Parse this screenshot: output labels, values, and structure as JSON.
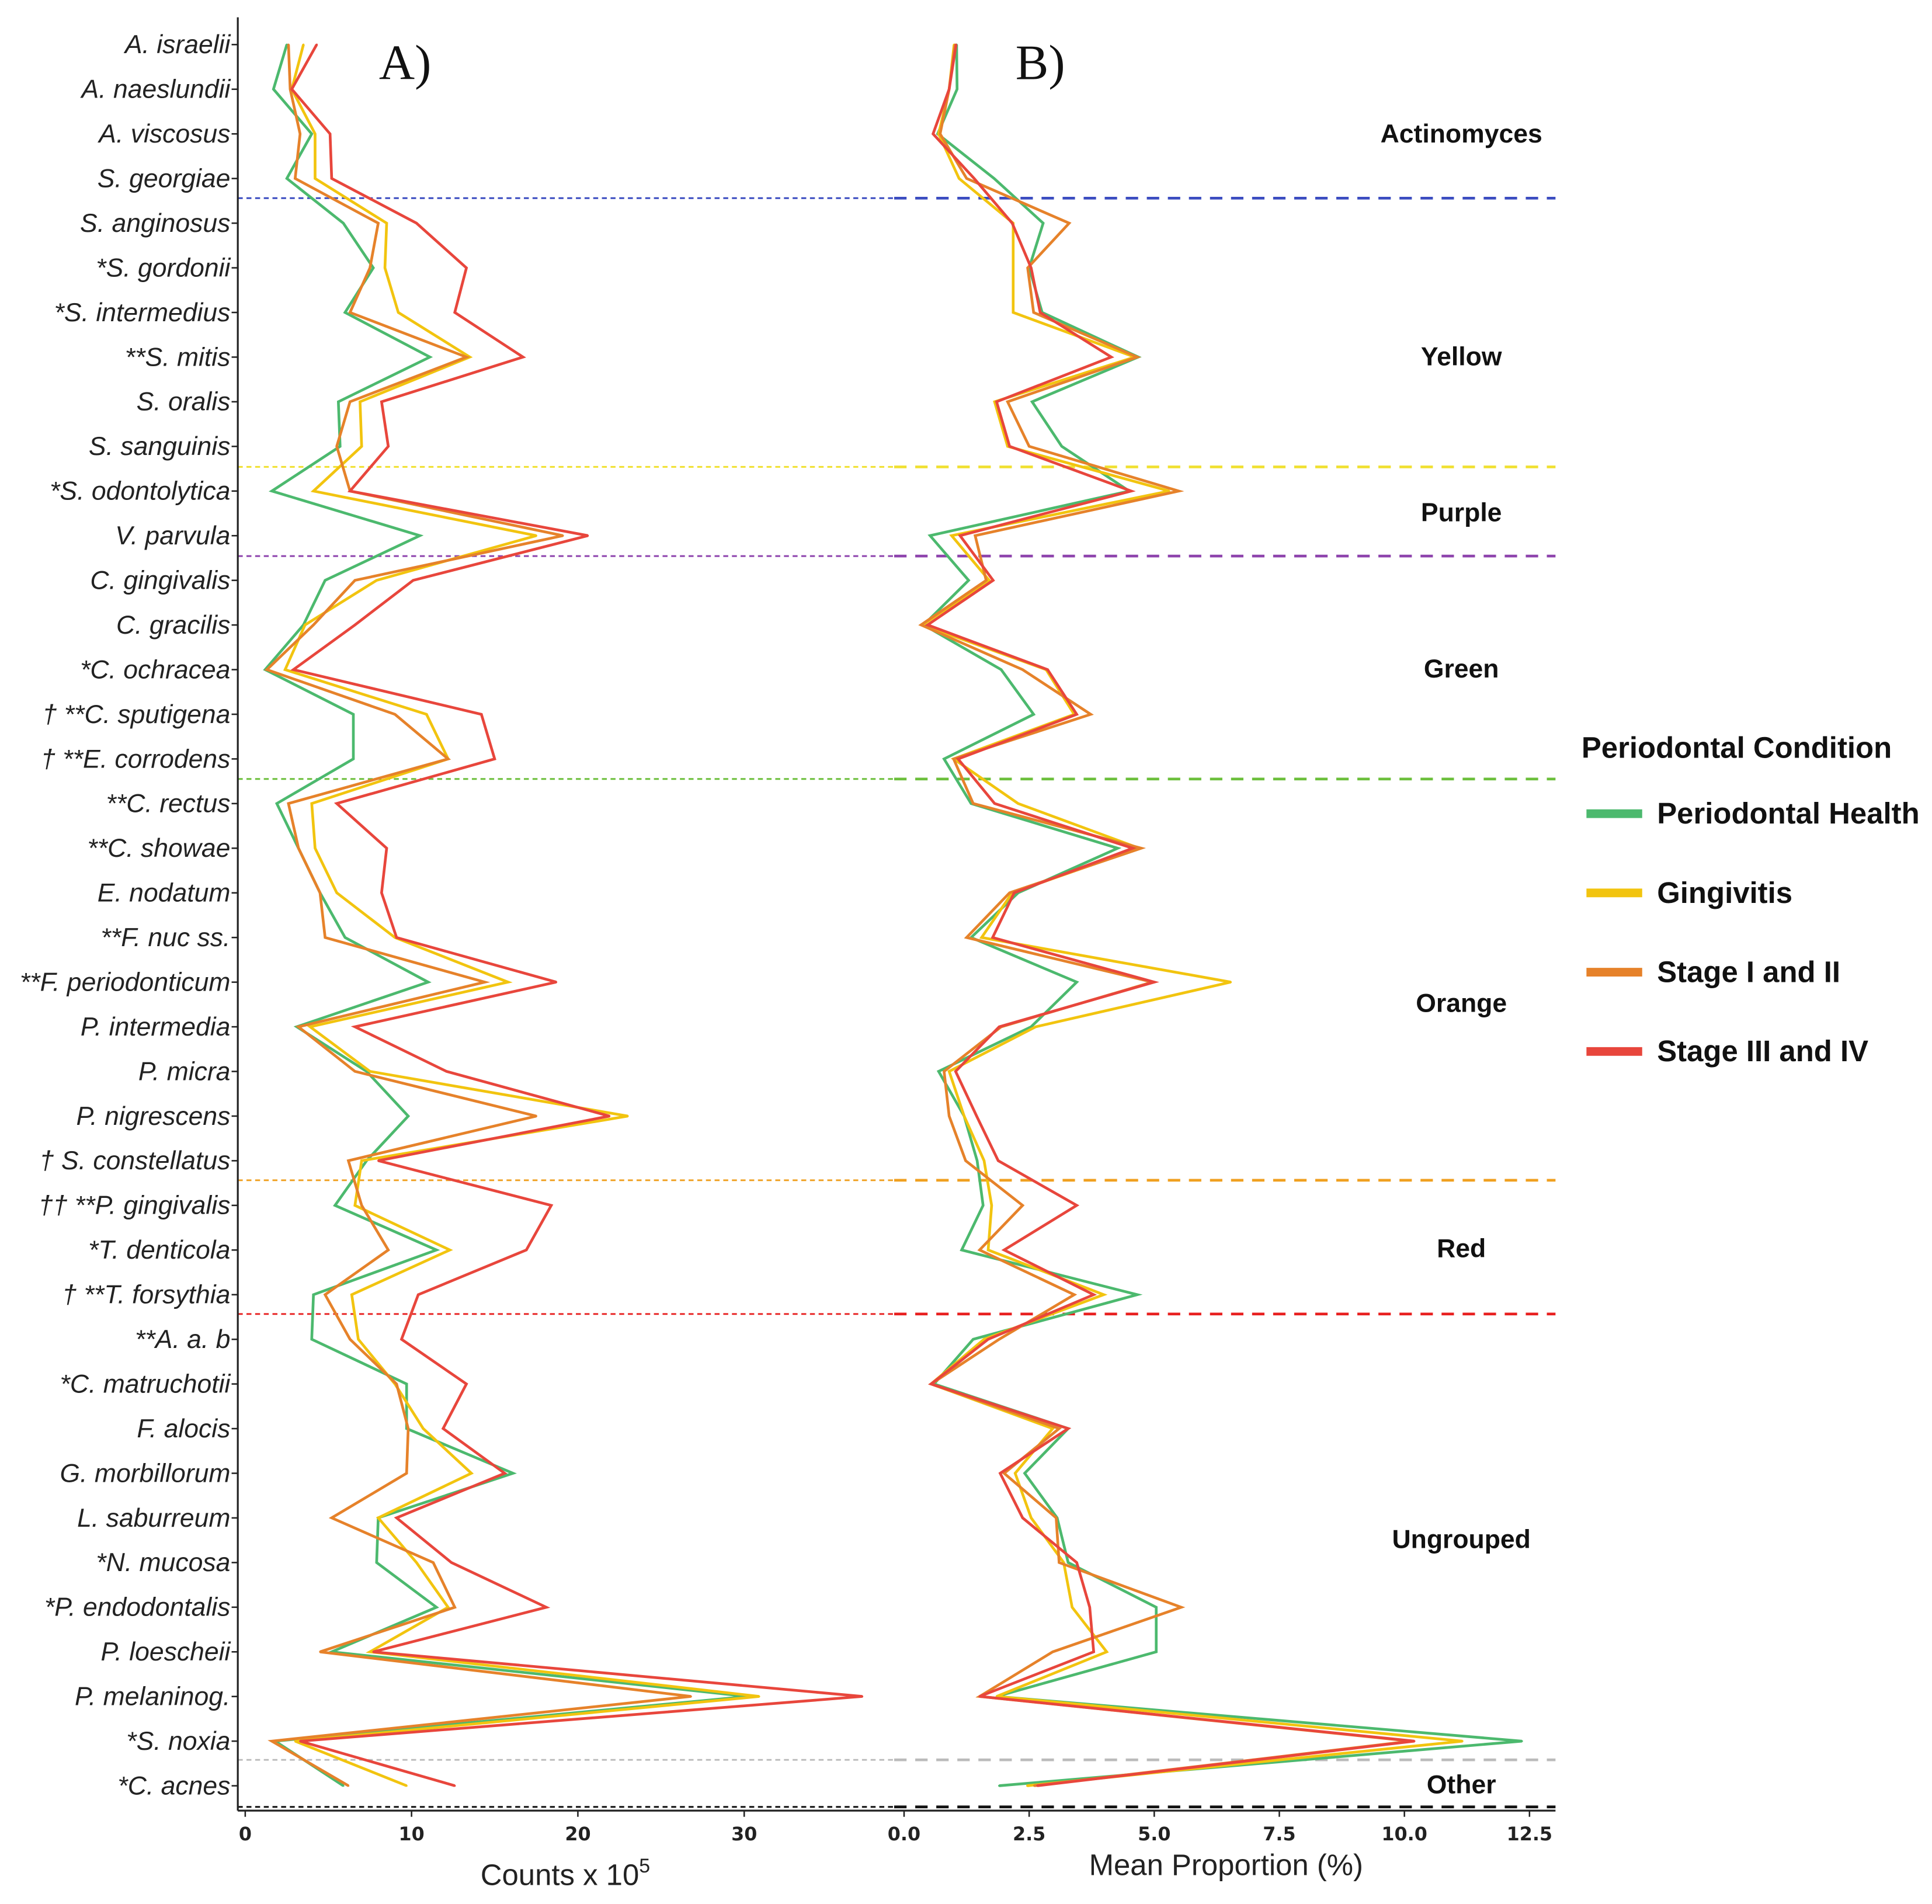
{
  "legend": {
    "title": "Periodontal Condition",
    "items": [
      {
        "label": "Periodontal Health",
        "color": "#4cb96e"
      },
      {
        "label": "Gingivitis",
        "color": "#f2c40f"
      },
      {
        "label": "Stage I and II",
        "color": "#e6822a"
      },
      {
        "label": "Stage III and IV",
        "color": "#e8463c"
      }
    ],
    "placement": "right"
  },
  "groups": [
    {
      "label": "Actinomyces",
      "color": "#3b4cc0"
    },
    {
      "label": "Yellow",
      "color": "#f0e030"
    },
    {
      "label": "Purple",
      "color": "#8e44ad"
    },
    {
      "label": "Green",
      "color": "#6cbf3c"
    },
    {
      "label": "Orange",
      "color": "#f0a020"
    },
    {
      "label": "Red",
      "color": "#e82020"
    },
    {
      "label": "Ungrouped",
      "color": "#bbbbbb"
    },
    {
      "label": "Other",
      "color": "#111111"
    }
  ],
  "chart_data": [
    {
      "type": "line",
      "panel_label": "A)",
      "xlabel": "Counts x 10",
      "xlabel_superscript": "5",
      "xlim": [
        0,
        38
      ],
      "xticks": [
        "0",
        "10",
        "20",
        "30"
      ],
      "grid": false,
      "categories": [
        "A. israelii",
        "A. naeslundii",
        "A. viscosus",
        "S. georgiae",
        "S. anginosus",
        "*S. gordonii",
        "*S. intermedius",
        "**S. mitis",
        "S. oralis",
        "S. sanguinis",
        "*S. odontolytica",
        "V. parvula",
        "C. gingivalis",
        "C. gracilis",
        "*C. ochracea",
        "† **C. sputigena",
        "† **E. corrodens",
        "**C. rectus",
        "**C. showae",
        "E. nodatum",
        "**F. nuc ss.",
        "**F. periodonticum",
        "P. intermedia",
        "P. micra",
        "P. nigrescens",
        "† S. constellatus",
        "†† **P. gingivalis",
        "*T. denticola",
        "† **T. forsythia",
        "**A. a. b",
        "*C. matruchotii",
        "F. alocis",
        "G. morbillorum",
        "L. saburreum",
        "*N. mucosa",
        "*P. endodontalis",
        "P. loescheii",
        "P. melaninog.",
        "*S. noxia",
        "*C. acnes"
      ],
      "series": [
        {
          "name": "Periodontal Health",
          "values": [
            2.5,
            1.7,
            4.0,
            2.5,
            5.9,
            7.7,
            6.0,
            11.1,
            5.6,
            5.7,
            1.6,
            10.5,
            4.8,
            3.5,
            1.2,
            6.5,
            6.5,
            1.9,
            3.2,
            4.5,
            6.0,
            11.0,
            3.1,
            7.3,
            9.8,
            7.3,
            5.4,
            11.5,
            4.1,
            4.0,
            9.7,
            9.7,
            16.1,
            8.0,
            7.9,
            11.5,
            5.2,
            30.2,
            1.8,
            5.9
          ]
        },
        {
          "name": "Gingivitis",
          "values": [
            3.5,
            2.8,
            4.2,
            4.2,
            8.5,
            8.4,
            9.2,
            13.5,
            6.9,
            7.0,
            4.1,
            17.5,
            7.9,
            3.6,
            2.4,
            10.9,
            12.2,
            4.0,
            4.2,
            5.5,
            9.0,
            15.8,
            3.9,
            7.5,
            23.0,
            7.0,
            6.6,
            12.3,
            6.4,
            6.8,
            9.0,
            10.7,
            13.6,
            8.0,
            10.3,
            12.2,
            7.5,
            30.9,
            3.0,
            9.7
          ]
        },
        {
          "name": "Stage I and II",
          "values": [
            2.6,
            2.7,
            3.3,
            3.0,
            8.0,
            7.5,
            6.3,
            13.3,
            6.3,
            5.5,
            6.3,
            19.1,
            6.6,
            4.1,
            1.3,
            9.0,
            12.2,
            2.6,
            3.2,
            4.5,
            4.8,
            14.4,
            3.2,
            6.6,
            17.5,
            6.2,
            7.0,
            8.6,
            4.8,
            6.3,
            9.1,
            9.8,
            9.7,
            5.2,
            11.3,
            12.6,
            4.5,
            26.8,
            1.6,
            6.2
          ]
        },
        {
          "name": "Stage III and IV",
          "values": [
            4.3,
            2.8,
            5.1,
            5.2,
            10.3,
            13.3,
            12.6,
            16.7,
            8.2,
            8.6,
            6.3,
            20.6,
            10.1,
            6.6,
            2.9,
            14.2,
            15.0,
            5.5,
            8.5,
            8.2,
            9.1,
            18.7,
            6.6,
            12.1,
            21.9,
            8.0,
            18.4,
            16.9,
            10.4,
            9.4,
            13.3,
            11.9,
            15.6,
            9.1,
            12.4,
            18.1,
            7.7,
            37.1,
            3.3,
            12.6
          ]
        }
      ]
    },
    {
      "type": "line",
      "panel_label": "B)",
      "xlabel": "Mean Proportion (%)",
      "xlim": [
        0,
        13
      ],
      "xticks": [
        "0.0",
        "2.5",
        "5.0",
        "7.5",
        "10.0",
        "12.5"
      ],
      "grid": false,
      "series": [
        {
          "name": "Periodontal Health",
          "values": [
            1.05,
            1.06,
            0.67,
            1.8,
            2.78,
            2.5,
            2.76,
            4.68,
            2.56,
            3.15,
            4.5,
            0.52,
            1.29,
            0.39,
            1.94,
            2.59,
            0.8,
            1.34,
            4.27,
            2.28,
            1.34,
            3.45,
            2.54,
            0.69,
            1.2,
            1.46,
            1.58,
            1.15,
            4.66,
            1.38,
            0.6,
            3.28,
            2.41,
            3.06,
            3.28,
            5.04,
            5.04,
            1.85,
            12.35,
            1.9
          ]
        },
        {
          "name": "Gingivitis",
          "values": [
            1.0,
            0.9,
            0.69,
            1.1,
            2.18,
            2.18,
            2.18,
            4.61,
            1.81,
            2.07,
            5.3,
            0.95,
            1.7,
            0.37,
            2.84,
            3.4,
            0.99,
            2.28,
            4.7,
            2.16,
            1.55,
            6.53,
            2.63,
            0.9,
            1.2,
            1.6,
            1.75,
            1.68,
            3.99,
            1.6,
            0.54,
            2.97,
            2.22,
            2.54,
            3.19,
            3.36,
            4.05,
            1.85,
            11.16,
            2.46
          ]
        },
        {
          "name": "Stage I and II",
          "values": [
            1.02,
            0.9,
            0.72,
            1.25,
            3.3,
            2.47,
            2.59,
            4.66,
            2.07,
            2.5,
            5.49,
            1.42,
            1.64,
            0.34,
            2.37,
            3.73,
            0.99,
            1.38,
            4.74,
            2.11,
            1.25,
            4.96,
            1.94,
            0.8,
            0.9,
            1.23,
            2.37,
            1.51,
            3.4,
            1.9,
            0.54,
            3.1,
            2.0,
            3.04,
            3.1,
            5.54,
            2.97,
            1.51,
            10.13,
            2.6
          ]
        },
        {
          "name": "Stage III and IV",
          "values": [
            1.04,
            0.9,
            0.58,
            1.4,
            2.16,
            2.54,
            2.72,
            4.14,
            1.85,
            2.11,
            4.54,
            1.12,
            1.78,
            0.47,
            2.87,
            3.45,
            1.08,
            1.81,
            4.57,
            2.2,
            1.77,
            5.0,
            1.9,
            1.03,
            1.45,
            1.88,
            3.45,
            2.0,
            3.79,
            1.68,
            0.54,
            3.28,
            1.92,
            2.37,
            3.45,
            3.71,
            3.79,
            1.51,
            10.2,
            2.66
          ]
        }
      ]
    }
  ]
}
